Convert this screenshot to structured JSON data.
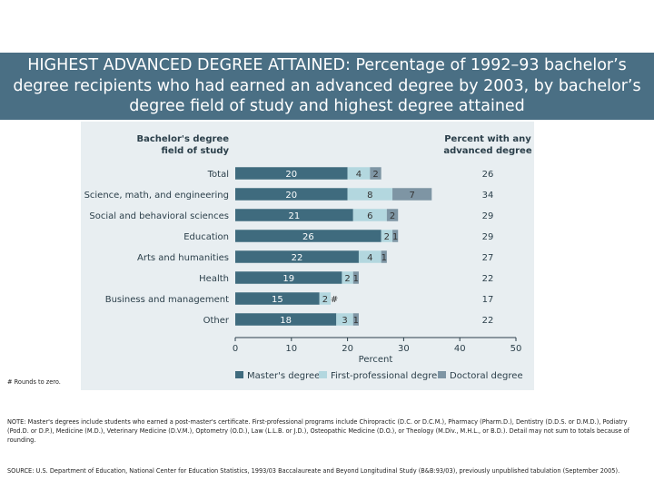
{
  "title": "HIGHEST ADVANCED DEGREE ATTAINED: Percentage of 1992–93 bachelor’s degree recipients who had earned an advanced degree by 2003, by bachelor’s degree field of study and highest degree attained",
  "chart_data": {
    "type": "bar",
    "orientation": "horizontal",
    "stacked": true,
    "left_header": [
      "Bachelor's degree",
      "field of study"
    ],
    "right_header": [
      "Percent with any",
      "advanced degree"
    ],
    "categories": [
      "Total",
      "Science, math, and engineering",
      "Social and behavioral sciences",
      "Education",
      "Arts and humanities",
      "Health",
      "Business and management",
      "Other"
    ],
    "series": [
      {
        "name": "Master's degree",
        "color": "#3f6b7e",
        "text_color": "#ffffff",
        "values": [
          20,
          20,
          21,
          26,
          22,
          19,
          15,
          18
        ],
        "labels": [
          "20",
          "20",
          "21",
          "26",
          "22",
          "19",
          "15",
          "18"
        ]
      },
      {
        "name": "First-professional degree",
        "color": "#b3d7df",
        "text_color": "#333333",
        "values": [
          4,
          8,
          6,
          2,
          4,
          2,
          2,
          3
        ],
        "labels": [
          "4",
          "8",
          "6",
          "2",
          "4",
          "2",
          "2",
          "3"
        ]
      },
      {
        "name": "Doctoral degree",
        "color": "#7e95a4",
        "text_color": "#333333",
        "values": [
          2,
          7,
          2,
          1,
          1,
          1,
          0,
          1
        ],
        "labels": [
          "2",
          "7",
          "2",
          "1",
          "1",
          "1",
          "#",
          "1"
        ]
      }
    ],
    "totals": [
      26,
      34,
      29,
      29,
      27,
      22,
      17,
      22
    ],
    "xlabel": "Percent",
    "xlim": [
      0,
      50
    ],
    "xticks": [
      0,
      10,
      20,
      30,
      40,
      50
    ],
    "legend_position": "bottom"
  },
  "footnote": "# Rounds to zero.",
  "note": "NOTE: Master's degrees include students who earned a post-master's certificate. First-professional programs include Chiropractic (D.C. or D.C.M.), Pharmacy (Pharm.D.), Dentistry (D.D.S. or D.M.D.), Podiatry (Pod.D. or D.P.), Medicine (M.D.), Veterinary Medicine (D.V.M.), Optometry (O.D.), Law (L.L.B. or J.D.), Osteopathic Medicine (D.O.), or Theology (M.Div., M.H.L., or B.D.). Detail may not sum to totals because of rounding.",
  "source": "SOURCE: U.S. Department of Education, National Center for Education Statistics, 1993/03 Baccalaureate and Beyond Longitudinal Study (B&B:93/03), previously unpublished tabulation (September 2005)."
}
